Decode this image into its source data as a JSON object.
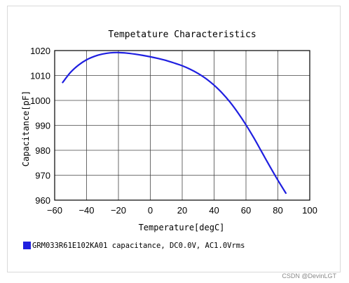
{
  "chart_data": {
    "type": "line",
    "title": "Tempetature  Characteristics",
    "xlabel": "Temperature[degC]",
    "ylabel": "Capacitance[pF]",
    "xlim": [
      -60,
      100
    ],
    "ylim": [
      960,
      1020
    ],
    "xticks": [
      -60,
      -40,
      -20,
      0,
      20,
      40,
      60,
      80,
      100
    ],
    "yticks": [
      960,
      970,
      980,
      990,
      1000,
      1010,
      1020
    ],
    "xtick_labels": [
      "−60",
      "−40",
      "−20",
      "0",
      "20",
      "40",
      "60",
      "80",
      "100"
    ],
    "yticks_labels": [
      "960",
      "970",
      "980",
      "990",
      "1000",
      "1010",
      "1020"
    ],
    "grid": true,
    "legend_position": "bottom-left",
    "series": [
      {
        "name": "GRM033R61E102KA01 capacitance, DC0.0V, AC1.0Vrms",
        "color": "#1f1fe0",
        "x": [
          -55,
          -50,
          -45,
          -40,
          -35,
          -30,
          -25,
          -20,
          -15,
          -10,
          -5,
          0,
          5,
          10,
          15,
          20,
          25,
          30,
          35,
          40,
          45,
          50,
          55,
          60,
          65,
          70,
          75,
          80,
          85
        ],
        "y": [
          1007.2,
          1011.3,
          1014.2,
          1016.3,
          1017.7,
          1018.6,
          1019.1,
          1019.2,
          1019.0,
          1018.6,
          1018.1,
          1017.5,
          1016.8,
          1016.0,
          1015.0,
          1013.9,
          1012.5,
          1010.8,
          1008.7,
          1006.1,
          1003.0,
          999.3,
          995.0,
          990.2,
          984.9,
          979.2,
          973.5,
          968.0,
          962.8
        ]
      }
    ]
  },
  "watermark": "CSDN @DevinLGT"
}
